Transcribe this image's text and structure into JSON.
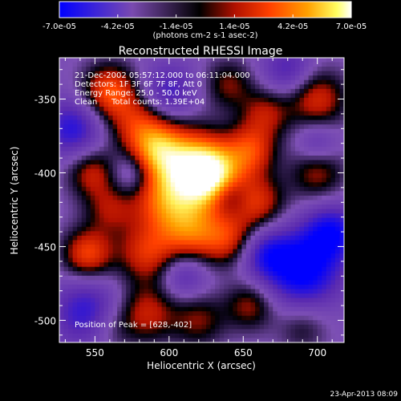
{
  "chart_data": {
    "type": "heatmap",
    "title": "Reconstructed RHESSI Image",
    "xlabel": "Heliocentric X (arcsec)",
    "ylabel": "Heliocentric Y (arcsec)",
    "xlim": [
      526,
      718
    ],
    "ylim": [
      -515,
      -322
    ],
    "x_ticks": [
      550,
      600,
      650,
      700
    ],
    "x_tick_labels": [
      "550",
      "600",
      "650",
      "700"
    ],
    "y_ticks": [
      -350,
      -400,
      -450,
      -500
    ],
    "y_tick_labels": [
      "-350",
      "-400",
      "-450",
      "-500"
    ],
    "colorbar": {
      "range": [
        -7e-05,
        7e-05
      ],
      "ticks": [
        -7e-05,
        -4.2e-05,
        -1.4e-05,
        1.4e-05,
        4.2e-05,
        7e-05
      ],
      "tick_labels": [
        "-7.0e-05",
        "-4.2e-05",
        "-1.4e-05",
        "1.4e-05",
        "4.2e-05",
        "7.0e-05"
      ],
      "units_label": "(photons cm-2 s-1 asec-2)",
      "colors": [
        "#0000ff",
        "#5a2ab0",
        "#7a4ab0",
        "#000000",
        "#b01000",
        "#ff4000",
        "#ffa000",
        "#ffff60",
        "#ffffff"
      ]
    },
    "annotations": [
      "21-Dec-2002 05:57:12.000 to 06:11:04.000",
      "Detectors: 1F 3F 6F 7F 8F, Att 0",
      "Energy Range: 25.0 - 50.0 keV",
      "Clean",
      "Total counts: 1.39E+04"
    ],
    "peak_label": "Position of Peak = [628,-402]",
    "peak": [
      628,
      -402
    ],
    "blobs": [
      {
        "x": 628,
        "y": -402,
        "v": 1.0,
        "s": 14
      },
      {
        "x": 612,
        "y": -395,
        "v": 0.8,
        "s": 18
      },
      {
        "x": 598,
        "y": -420,
        "v": 0.6,
        "s": 16
      },
      {
        "x": 560,
        "y": -345,
        "v": 0.65,
        "s": 13
      },
      {
        "x": 580,
        "y": -368,
        "v": 0.5,
        "s": 14
      },
      {
        "x": 592,
        "y": -385,
        "v": 0.55,
        "s": 12
      },
      {
        "x": 548,
        "y": -400,
        "v": 0.45,
        "s": 12
      },
      {
        "x": 545,
        "y": -455,
        "v": 0.6,
        "s": 12
      },
      {
        "x": 560,
        "y": -425,
        "v": 0.35,
        "s": 12
      },
      {
        "x": 585,
        "y": -455,
        "v": 0.5,
        "s": 14
      },
      {
        "x": 615,
        "y": -440,
        "v": 0.55,
        "s": 14
      },
      {
        "x": 640,
        "y": -445,
        "v": 0.5,
        "s": 13
      },
      {
        "x": 660,
        "y": -420,
        "v": 0.5,
        "s": 13
      },
      {
        "x": 655,
        "y": -385,
        "v": 0.55,
        "s": 12
      },
      {
        "x": 665,
        "y": -360,
        "v": 0.4,
        "s": 12
      },
      {
        "x": 640,
        "y": -340,
        "v": 0.35,
        "s": 12
      },
      {
        "x": 700,
        "y": -350,
        "v": 0.5,
        "s": 14
      },
      {
        "x": 700,
        "y": -400,
        "v": 0.4,
        "s": 13
      },
      {
        "x": 585,
        "y": -495,
        "v": 0.45,
        "s": 14
      },
      {
        "x": 620,
        "y": -500,
        "v": 0.35,
        "s": 13
      },
      {
        "x": 655,
        "y": -490,
        "v": 0.4,
        "s": 12
      },
      {
        "x": 690,
        "y": -505,
        "v": 0.25,
        "s": 12
      },
      {
        "x": 560,
        "y": -505,
        "v": 0.25,
        "s": 12
      },
      {
        "x": 535,
        "y": -370,
        "v": -0.55,
        "s": 14
      },
      {
        "x": 545,
        "y": -495,
        "v": -0.55,
        "s": 16
      },
      {
        "x": 600,
        "y": -345,
        "v": -0.45,
        "s": 13
      },
      {
        "x": 680,
        "y": -330,
        "v": -0.4,
        "s": 12
      },
      {
        "x": 690,
        "y": -465,
        "v": -0.8,
        "s": 18
      },
      {
        "x": 665,
        "y": -455,
        "v": -0.45,
        "s": 12
      },
      {
        "x": 710,
        "y": -440,
        "v": -0.6,
        "s": 13
      },
      {
        "x": 610,
        "y": -470,
        "v": -0.35,
        "s": 11
      },
      {
        "x": 640,
        "y": -415,
        "v": -0.3,
        "s": 9
      },
      {
        "x": 700,
        "y": -380,
        "v": -0.3,
        "s": 10
      },
      {
        "x": 575,
        "y": -400,
        "v": -0.3,
        "s": 10
      }
    ]
  },
  "footer": {
    "timestamp": "23-Apr-2013 08:09"
  }
}
